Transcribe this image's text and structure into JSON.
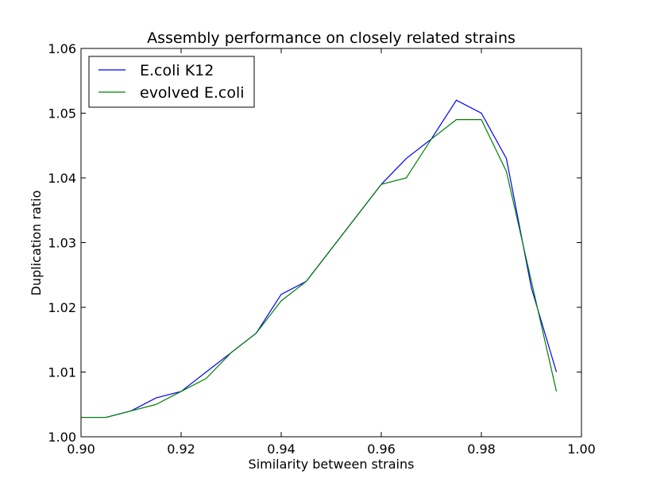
{
  "chart_data": {
    "type": "line",
    "title": "Assembly performance on closely related strains",
    "xlabel": "Similarity between strains",
    "ylabel": "Duplication ratio",
    "xlim": [
      0.9,
      1.0
    ],
    "ylim": [
      1.0,
      1.06
    ],
    "x_ticks": [
      "0.90",
      "0.92",
      "0.94",
      "0.96",
      "0.98",
      "1.00"
    ],
    "x_tick_values": [
      0.9,
      0.92,
      0.94,
      0.96,
      0.98,
      1.0
    ],
    "y_ticks": [
      "1.00",
      "1.01",
      "1.02",
      "1.03",
      "1.04",
      "1.05",
      "1.06"
    ],
    "y_tick_values": [
      1.0,
      1.01,
      1.02,
      1.03,
      1.04,
      1.05,
      1.06
    ],
    "grid": false,
    "legend_position": "top-left",
    "x": [
      0.9,
      0.905,
      0.91,
      0.915,
      0.92,
      0.925,
      0.93,
      0.935,
      0.94,
      0.945,
      0.95,
      0.955,
      0.96,
      0.965,
      0.97,
      0.975,
      0.98,
      0.985,
      0.99,
      0.995
    ],
    "series": [
      {
        "name": "E.coli K12",
        "color": "#0000ff",
        "values": [
          1.003,
          1.003,
          1.004,
          1.006,
          1.007,
          1.01,
          1.013,
          1.016,
          1.022,
          1.024,
          1.029,
          1.034,
          1.039,
          1.043,
          1.046,
          1.052,
          1.05,
          1.043,
          1.023,
          1.01
        ]
      },
      {
        "name": "evolved E.coli",
        "color": "#008000",
        "values": [
          1.003,
          1.003,
          1.004,
          1.005,
          1.007,
          1.009,
          1.013,
          1.016,
          1.021,
          1.024,
          1.029,
          1.034,
          1.039,
          1.04,
          1.046,
          1.049,
          1.049,
          1.041,
          1.024,
          1.007
        ]
      }
    ]
  }
}
